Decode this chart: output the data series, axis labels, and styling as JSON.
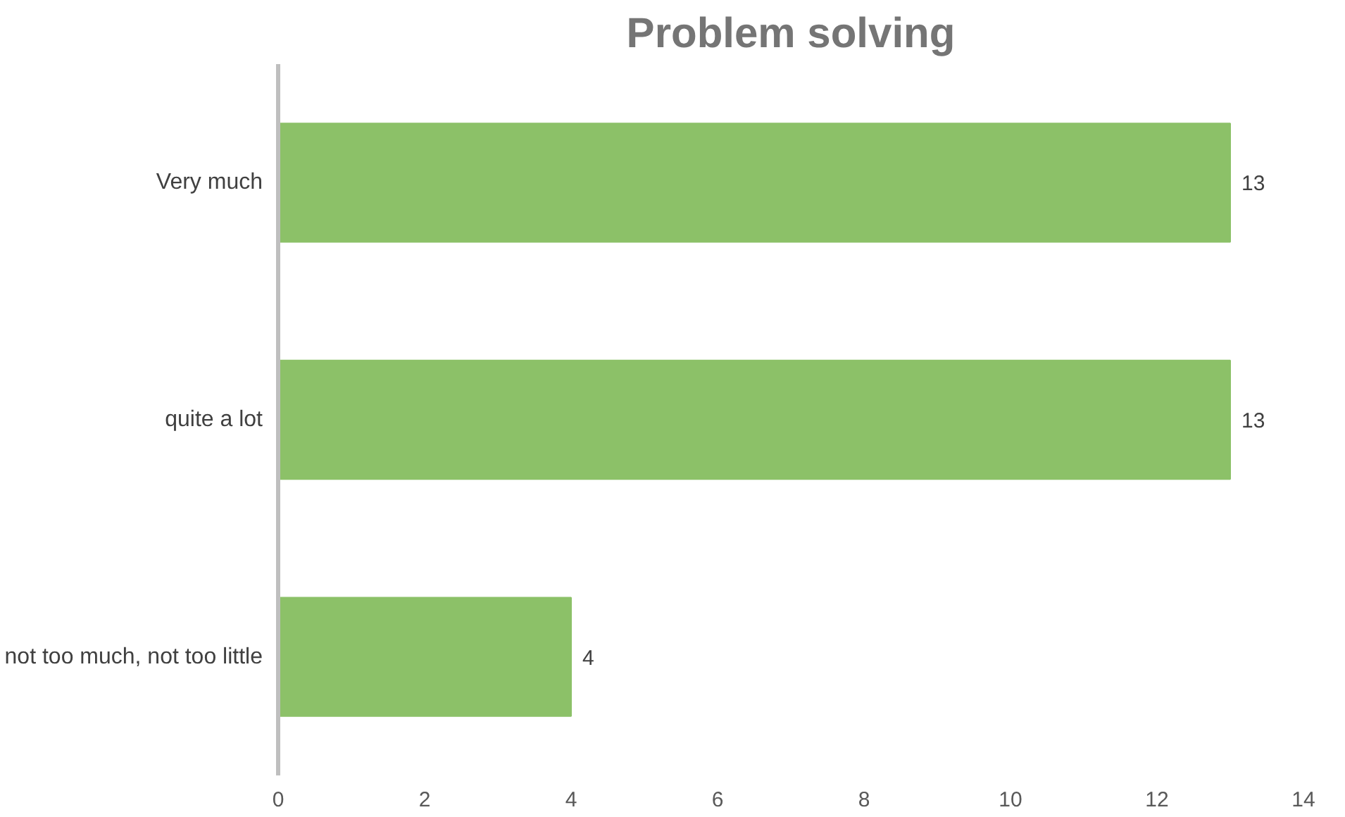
{
  "chart_data": {
    "type": "bar",
    "orientation": "horizontal",
    "title": "Problem solving",
    "categories": [
      "Very much",
      "quite a lot",
      "not too much, not too little"
    ],
    "values": [
      13,
      13,
      4
    ],
    "color": "#8cc168",
    "xlim": [
      0,
      14
    ],
    "xticks": [
      0,
      2,
      4,
      6,
      8,
      10,
      12,
      14
    ],
    "data_labels": true,
    "grid": false
  }
}
